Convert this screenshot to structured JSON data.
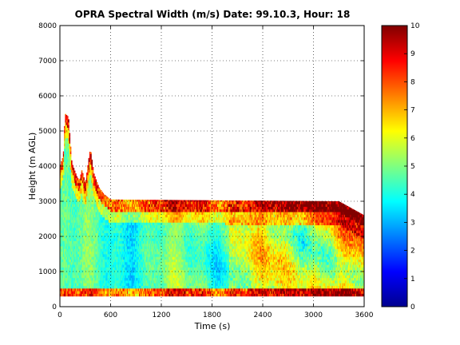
{
  "chart_data": {
    "type": "heatmap",
    "title": "OPRA Spectral Width (m/s)  Date: 99.10.3, Hour: 18",
    "xlabel": "Time (s)",
    "ylabel": "Height (m AGL)",
    "xlim": [
      0,
      3600
    ],
    "ylim": [
      0,
      8000
    ],
    "xticks": [
      0,
      600,
      1200,
      1800,
      2400,
      3000,
      3600
    ],
    "yticks": [
      0,
      1000,
      2000,
      3000,
      4000,
      5000,
      6000,
      7000,
      8000
    ],
    "grid": true,
    "colormap": "jet",
    "clim": [
      0,
      10
    ],
    "colorbar_ticks": [
      0,
      1,
      2,
      3,
      4,
      5,
      6,
      7,
      8,
      9,
      10
    ],
    "data_floor_m": 300,
    "echo_top_profile": [
      {
        "t": 0,
        "top": 4000
      },
      {
        "t": 40,
        "top": 4300
      },
      {
        "t": 60,
        "top": 5500
      },
      {
        "t": 100,
        "top": 5400
      },
      {
        "t": 140,
        "top": 4100
      },
      {
        "t": 200,
        "top": 3700
      },
      {
        "t": 230,
        "top": 3600
      },
      {
        "t": 260,
        "top": 3900
      },
      {
        "t": 300,
        "top": 3500
      },
      {
        "t": 340,
        "top": 4200
      },
      {
        "t": 360,
        "top": 4500
      },
      {
        "t": 400,
        "top": 3800
      },
      {
        "t": 460,
        "top": 3400
      },
      {
        "t": 520,
        "top": 3200
      },
      {
        "t": 600,
        "top": 3050
      },
      {
        "t": 3300,
        "top": 3000
      },
      {
        "t": 3600,
        "top": 2600
      }
    ]
  }
}
